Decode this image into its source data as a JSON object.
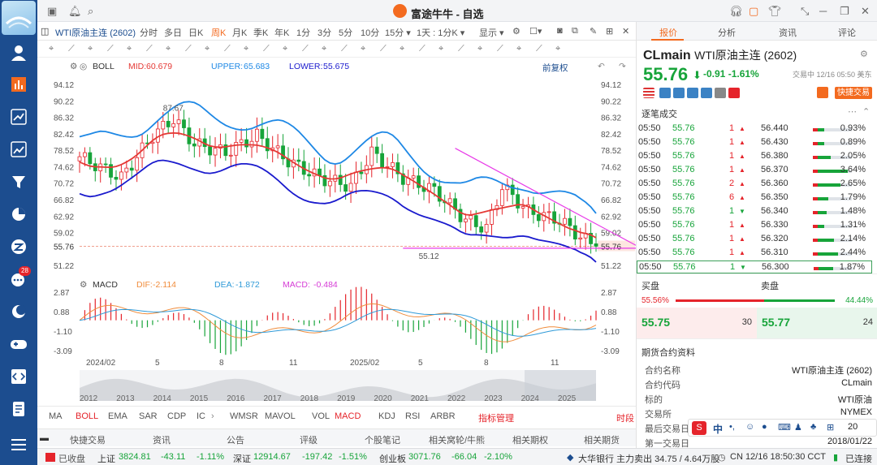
{
  "window": {
    "title": "富途牛牛 - 自选"
  },
  "toolbar": {
    "symbol_name": "WTI原油主连 (2602)",
    "periods": [
      "分时",
      "多日",
      "日K",
      "周K",
      "月K",
      "季K",
      "年K",
      "1分",
      "3分",
      "5分",
      "10分",
      "15分 ▾",
      "1天 : 1分K ▾"
    ],
    "active_period": "周K",
    "display_label": "显示 ▾"
  },
  "boll": {
    "label": "BOLL",
    "mid_label": "MID:",
    "mid": "60.679",
    "upper_label": "UPPER:",
    "upper": "65.683",
    "lower_label": "LOWER:",
    "lower": "55.675",
    "adjust": "前复权"
  },
  "macd": {
    "label": "MACD",
    "dif_label": "DIF:",
    "dif": "-2.114",
    "dea_label": "DEA:",
    "dea": "-1.872",
    "macd_label": "MACD:",
    "macd": "-0.484"
  },
  "price_axis": [
    "94.12",
    "90.22",
    "86.32",
    "82.42",
    "78.52",
    "74.62",
    "70.72",
    "66.82",
    "62.92",
    "59.02",
    "55.76",
    "51.22"
  ],
  "current_price_tag": "55.76",
  "annotations": {
    "high": "87.67",
    "low": "55.12"
  },
  "macd_axis": [
    "2.87",
    "0.88",
    "-1.10",
    "-3.09"
  ],
  "time_axis": [
    "2024/02",
    "5",
    "8",
    "11",
    "2025/02",
    "5",
    "8",
    "11"
  ],
  "overview_axis": [
    "2012",
    "2013",
    "2014",
    "2015",
    "2016",
    "2017",
    "2018",
    "2019",
    "2020",
    "2021",
    "2022",
    "2023",
    "2024",
    "2025"
  ],
  "indicators": [
    "MA",
    "BOLL",
    "EMA",
    "SAR",
    "CDP",
    "IC",
    "WMSR",
    "MAVOL",
    "VOL",
    "MACD",
    "KDJ",
    "RSI",
    "ARBR"
  ],
  "indicator_manage": "指标管理",
  "indicator_time": "时段",
  "bottom_tabs": [
    "快捷交易",
    "资讯",
    "公告",
    "评级",
    "个股笔记",
    "相关窝轮/牛熊",
    "相关期权",
    "相关期货"
  ],
  "status": {
    "market": "已收盘",
    "sh_label": "上证",
    "sh_value": "3824.81",
    "sh_chg": "-43.11",
    "sh_pct": "-1.11%",
    "sz_label": "深证",
    "sz_value": "12914.67",
    "sz_chg": "-197.42",
    "sz_pct": "-1.51%",
    "cy_label": "创业板",
    "cy_value": "3071.76",
    "cy_chg": "-66.04",
    "cy_pct": "-2.10%",
    "news": "大华银行 主力卖出 34.75 / 4.64万股",
    "clock": "CN 12/16 18:50:30 CCT",
    "conn": "已连接"
  },
  "right": {
    "tabs": [
      "报价",
      "分析",
      "资讯",
      "评论"
    ],
    "code": "CLmain",
    "name": "WTI原油主连 (2602)",
    "price": "55.76",
    "change": "-0.91",
    "change_pct": "-1.61%",
    "time": "交易中 12/16 05:50 美东",
    "quick_trade": "快捷交易",
    "trades_title": "逐笔成交",
    "trades": [
      {
        "t": "05:50",
        "p": "55.76",
        "q": "1",
        "dir": "▲",
        "px": "56.440",
        "pct": "0.93%",
        "r": 0.3
      },
      {
        "t": "05:50",
        "p": "55.76",
        "q": "1",
        "dir": "▲",
        "px": "56.430",
        "pct": "0.89%",
        "r": 0.3
      },
      {
        "t": "05:50",
        "p": "55.76",
        "q": "1",
        "dir": "▲",
        "px": "56.380",
        "pct": "2.05%",
        "r": 0.45
      },
      {
        "t": "05:50",
        "p": "55.76",
        "q": "1",
        "dir": "▲",
        "px": "56.370",
        "pct": "3.64%",
        "r": 0.9
      },
      {
        "t": "05:50",
        "p": "55.76",
        "q": "2",
        "dir": "▲",
        "px": "56.360",
        "pct": "2.65%",
        "r": 0.7
      },
      {
        "t": "05:50",
        "p": "55.76",
        "q": "6",
        "dir": "▲",
        "px": "56.350",
        "pct": "1.79%",
        "r": 0.4
      },
      {
        "t": "05:50",
        "p": "55.76",
        "q": "1",
        "dir": "▼",
        "px": "56.340",
        "pct": "1.48%",
        "r": 0.35
      },
      {
        "t": "05:50",
        "p": "55.76",
        "q": "1",
        "dir": "▲",
        "px": "56.330",
        "pct": "1.31%",
        "r": 0.3
      },
      {
        "t": "05:50",
        "p": "55.76",
        "q": "1",
        "dir": "▲",
        "px": "56.320",
        "pct": "2.14%",
        "r": 0.55
      },
      {
        "t": "05:50",
        "p": "55.76",
        "q": "1",
        "dir": "▲",
        "px": "56.310",
        "pct": "2.44%",
        "r": 0.65
      },
      {
        "t": "05:50",
        "p": "55.76",
        "q": "1",
        "dir": "▼",
        "px": "56.300",
        "pct": "1.87%",
        "r": 0.5
      }
    ],
    "bid_label": "买盘",
    "ask_label": "卖盘",
    "bid_pct": "55.56%",
    "ask_pct": "44.44%",
    "bid_ratio": 0.5556,
    "bid_price": "55.75",
    "bid_qty": "30",
    "ask_price": "55.77",
    "ask_qty": "24",
    "info_title": "期货合约资料",
    "info": [
      {
        "k": "合约名称",
        "v": "WTI原油主连 (2602)"
      },
      {
        "k": "合约代码",
        "v": "CLmain"
      },
      {
        "k": "标的",
        "v": "WTI原油"
      },
      {
        "k": "交易所",
        "v": "NYMEX"
      },
      {
        "k": "最后交易日",
        "v": "20"
      },
      {
        "k": "第一交易日",
        "v": "2018/01/22"
      }
    ]
  },
  "sidebar": {
    "badge": "28"
  },
  "colors": {
    "up": "#e5242b",
    "down": "#17a43a",
    "upper": "#1e88e5",
    "mid": "#e53935",
    "lower": "#1a1acd",
    "trend": "#e83ae8",
    "sidebar": "#1c4d8f",
    "accent": "#f36a1f"
  }
}
